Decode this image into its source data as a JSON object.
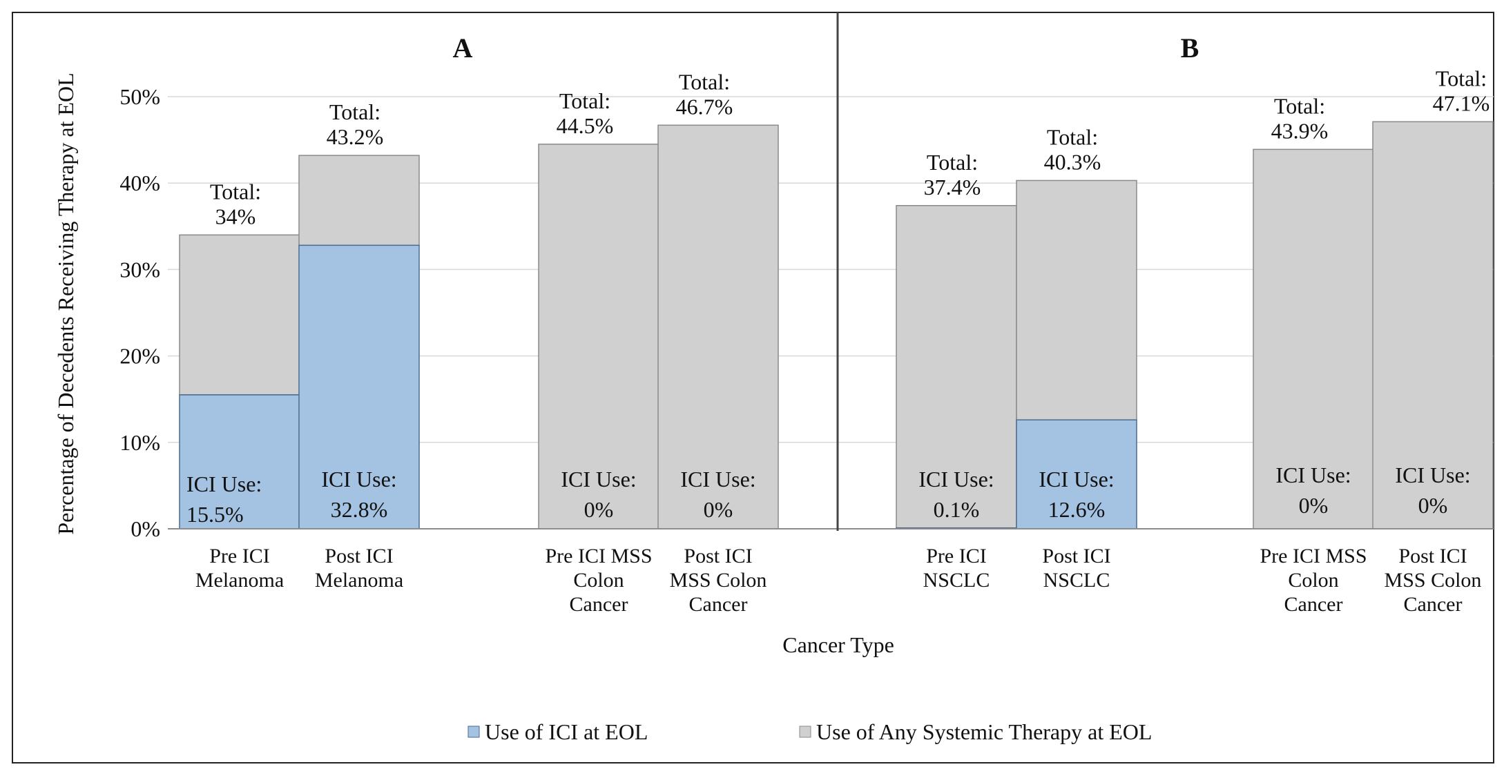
{
  "colors": {
    "ici": "#a4c2e2",
    "ici_stroke": "#4a6a90",
    "total": "#d1d0d1",
    "total_stroke": "#8a8a8a",
    "grid": "#d9d9d9",
    "axis": "#8c8c8c",
    "frame": "#222222",
    "divider": "#444444"
  },
  "chart_data": {
    "type": "bar",
    "stacked": true,
    "ylabel": "Percentage of Decedents Receiving Therapy at EOL",
    "xlabel": "Cancer Type",
    "ylim": [
      0,
      50
    ],
    "yticks": [
      0,
      10,
      20,
      30,
      40,
      50
    ],
    "ytick_labels": [
      "0%",
      "10%",
      "20%",
      "30%",
      "40%",
      "50%"
    ],
    "grid": true,
    "legend_position": "bottom-center",
    "legend": [
      {
        "key": "ici",
        "label": "Use of ICI at EOL"
      },
      {
        "key": "total",
        "label": "Use of Any Systemic Therapy at EOL"
      }
    ],
    "panels": [
      {
        "title": "A",
        "categories": [
          {
            "label": [
              "Pre ICI",
              "Melanoma"
            ],
            "ici": 15.5,
            "total": 34.0,
            "ici_label": [
              "ICI Use:",
              "15.5%"
            ],
            "total_label": [
              "Total:",
              "34%"
            ]
          },
          {
            "label": [
              "Post ICI",
              "Melanoma"
            ],
            "ici": 32.8,
            "total": 43.2,
            "ici_label": [
              "ICI Use:",
              "32.8%"
            ],
            "total_label": [
              "Total:",
              "43.2%"
            ]
          },
          {
            "label": [
              "Pre ICI MSS",
              "Colon",
              "Cancer"
            ],
            "ici": 0,
            "total": 44.5,
            "ici_label": [
              "ICI Use:",
              "0%"
            ],
            "total_label": [
              "Total:",
              "44.5%"
            ]
          },
          {
            "label": [
              "Post ICI",
              "MSS Colon",
              "Cancer"
            ],
            "ici": 0,
            "total": 46.7,
            "ici_label": [
              "ICI Use:",
              "0%"
            ],
            "total_label": [
              "Total:",
              "46.7%"
            ]
          }
        ]
      },
      {
        "title": "B",
        "categories": [
          {
            "label": [
              "Pre ICI",
              "NSCLC"
            ],
            "ici": 0.1,
            "total": 37.4,
            "ici_label": [
              "ICI Use:",
              "0.1%"
            ],
            "total_label": [
              "Total:",
              "37.4%"
            ]
          },
          {
            "label": [
              "Post ICI",
              "NSCLC"
            ],
            "ici": 12.6,
            "total": 40.3,
            "ici_label": [
              "ICI Use:",
              "12.6%"
            ],
            "total_label": [
              "Total:",
              "40.3%"
            ]
          },
          {
            "label": [
              "Pre ICI MSS",
              "Colon",
              "Cancer"
            ],
            "ici": 0,
            "total": 43.9,
            "ici_label": [
              "ICI Use:",
              "0%"
            ],
            "total_label": [
              "Total:",
              "43.9%"
            ]
          },
          {
            "label": [
              "Post ICI",
              "MSS Colon",
              "Cancer"
            ],
            "ici": 0,
            "total": 47.1,
            "ici_label": [
              "ICI Use:",
              "0%"
            ],
            "total_label": [
              "Total:",
              "47.1%"
            ]
          }
        ]
      }
    ]
  }
}
